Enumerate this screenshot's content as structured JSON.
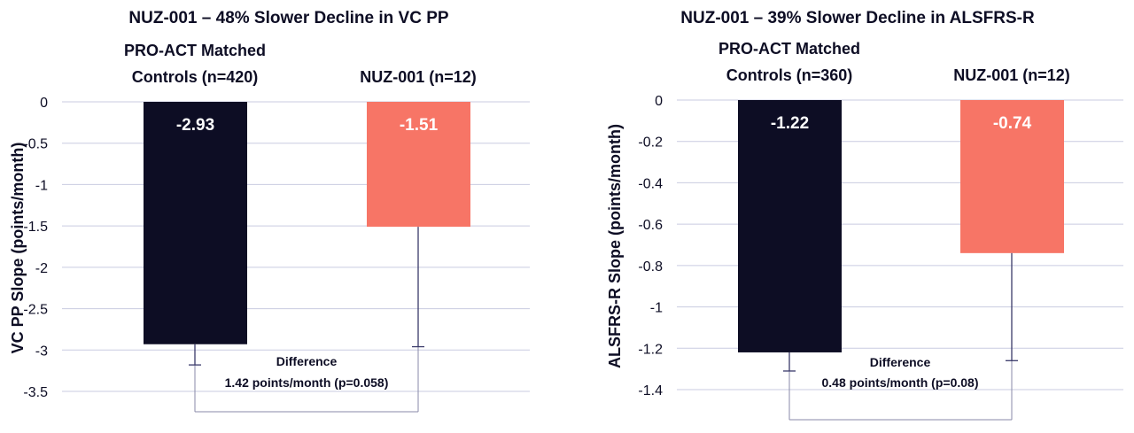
{
  "chart_data": [
    {
      "type": "bar",
      "title": "NUZ-001 – 48% Slower Decline in VC PP",
      "xlabel": "",
      "ylabel": "VC PP Slope (points/month)",
      "ylim": [
        -3.5,
        0
      ],
      "yticks": [
        0,
        -0.5,
        -1,
        -1.5,
        -2,
        -2.5,
        -3,
        -3.5
      ],
      "grid": true,
      "categories": [
        "PRO-ACT Matched Controls (n=420)",
        "NUZ-001 (n=12)"
      ],
      "category_lines": [
        [
          "PRO-ACT Matched",
          "Controls (n=420)"
        ],
        [
          "NUZ-001 (n=12)"
        ]
      ],
      "values": [
        -2.93,
        -1.51
      ],
      "value_labels": [
        "-2.93",
        "-1.51"
      ],
      "error_low": [
        -3.18,
        -2.96
      ],
      "colors": [
        "#0d0d24",
        "#f77566"
      ],
      "annotation": {
        "line1": "Difference",
        "line2": "1.42 points/month (p=0.058)"
      }
    },
    {
      "type": "bar",
      "title": "NUZ-001 – 39% Slower Decline in ALSFRS-R",
      "xlabel": "",
      "ylabel": "ALSFRS-R Slope (points/month)",
      "ylim": [
        -1.4,
        0
      ],
      "yticks": [
        0,
        -0.2,
        -0.4,
        -0.6,
        -0.8,
        -1,
        -1.2,
        -1.4
      ],
      "grid": true,
      "categories": [
        "PRO-ACT Matched Controls (n=360)",
        "NUZ-001 (n=12)"
      ],
      "category_lines": [
        [
          "PRO-ACT Matched",
          "Controls (n=360)"
        ],
        [
          "NUZ-001 (n=12)"
        ]
      ],
      "values": [
        -1.22,
        -0.74
      ],
      "value_labels": [
        "-1.22",
        "-0.74"
      ],
      "error_low": [
        -1.31,
        -1.26
      ],
      "colors": [
        "#0d0d24",
        "#f77566"
      ],
      "annotation": {
        "line1": "Difference",
        "line2": "0.48 points/month (p=0.08)"
      }
    }
  ]
}
